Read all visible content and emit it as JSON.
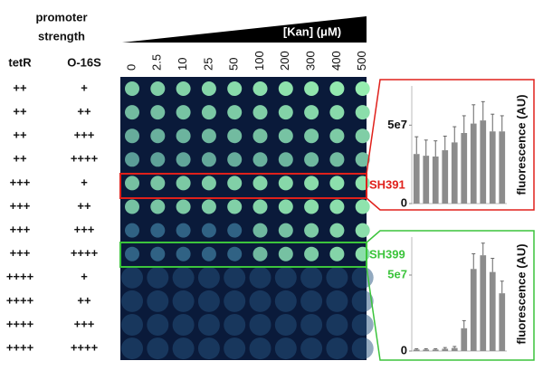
{
  "header": {
    "title_lines": [
      "promoter",
      "strength"
    ],
    "columns": [
      "tetR",
      "O-16S"
    ],
    "concentration_label": "[Kan] (μM)"
  },
  "concentrations": [
    "0",
    "2.5",
    "10",
    "25",
    "50",
    "100",
    "200",
    "300",
    "400",
    "500"
  ],
  "rows": [
    [
      "++",
      "+"
    ],
    [
      "++",
      "++"
    ],
    [
      "++",
      "+++"
    ],
    [
      "++",
      "++++"
    ],
    [
      "+++",
      "+"
    ],
    [
      "+++",
      "++"
    ],
    [
      "+++",
      "+++"
    ],
    [
      "+++",
      "++++"
    ],
    [
      "++++",
      "+"
    ],
    [
      "++++",
      "++"
    ],
    [
      "++++",
      "+++"
    ],
    [
      "++++",
      "++++"
    ]
  ],
  "chart_data": [
    {
      "type": "bar",
      "annotation": "SH391",
      "annotation_color": "#e0201b",
      "ylabel": "fluorescence (AU)",
      "categories": [
        null,
        null,
        null,
        null,
        null,
        null,
        null,
        null,
        null,
        null
      ],
      "values": [
        31600000,
        30500000,
        30000000,
        34000000,
        39000000,
        45000000,
        51000000,
        53000000,
        46000000,
        46000000
      ],
      "errors": [
        11000000,
        10000000,
        10000000,
        9000000,
        10000000,
        11000000,
        12000000,
        12000000,
        11000000,
        10000000
      ],
      "color": "#8c8c8c",
      "ylim": [
        0,
        75000000
      ],
      "yticks": [
        0,
        {
          "value": 50000000,
          "label": "5e7"
        }
      ]
    },
    {
      "type": "bar",
      "annotation": "SH399",
      "annotation_color": "#3cc43c",
      "ylabel": "fluorescence (AU)",
      "categories": [
        null,
        null,
        null,
        null,
        null,
        null,
        null,
        null,
        null,
        null
      ],
      "values": [
        1000000,
        1000000,
        1000000,
        1500000,
        2000000,
        15000000,
        54000000,
        63000000,
        52000000,
        38000000
      ],
      "errors": [
        500000,
        500000,
        500000,
        800000,
        1000000,
        5000000,
        10000000,
        8000000,
        9000000,
        8000000
      ],
      "color": "#8c8c8c",
      "ylim": [
        0,
        75000000
      ],
      "yticks": [
        0,
        {
          "value": 50000000,
          "label": "5e7"
        }
      ]
    }
  ]
}
